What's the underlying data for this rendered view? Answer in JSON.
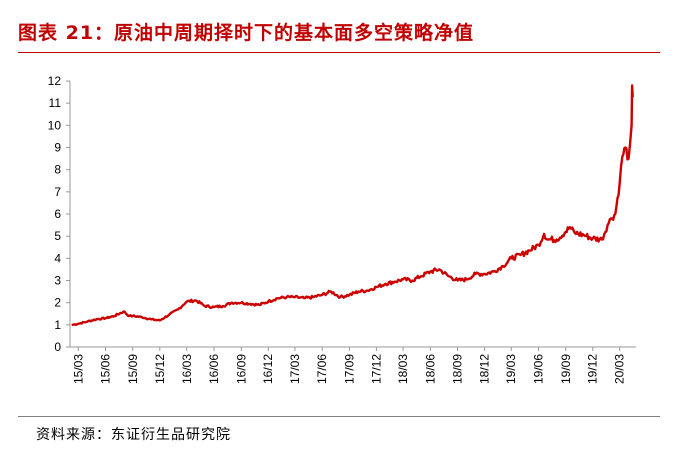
{
  "title": "图表 21：原油中周期择时下的基本面多空策略净值",
  "source": "资料来源：东证衍生品研究院",
  "colors": {
    "title": "#c00000",
    "line": "#cc0000",
    "axis": "#999999"
  },
  "chart_data": {
    "type": "line",
    "title": "",
    "xlabel": "",
    "ylabel": "",
    "ylim": [
      0,
      12
    ],
    "yticks": [
      0,
      1,
      2,
      3,
      4,
      5,
      6,
      7,
      8,
      9,
      10,
      11,
      12
    ],
    "grid": false,
    "legend": "none",
    "x_tick_labels": [
      "15/03",
      "15/06",
      "15/09",
      "15/12",
      "16/03",
      "16/06",
      "16/09",
      "16/12",
      "17/03",
      "17/06",
      "17/09",
      "17/12",
      "18/03",
      "18/06",
      "18/09",
      "18/12",
      "19/03",
      "19/06",
      "19/09",
      "19/12",
      "20/03"
    ],
    "x": [
      "2015-02-10",
      "2015-03-01",
      "2015-04-01",
      "2015-05-01",
      "2015-06-01",
      "2015-07-01",
      "2015-08-01",
      "2015-08-20",
      "2015-09-01",
      "2015-10-01",
      "2015-11-01",
      "2015-12-01",
      "2016-01-01",
      "2016-02-01",
      "2016-03-01",
      "2016-04-01",
      "2016-05-01",
      "2016-06-01",
      "2016-07-01",
      "2016-08-01",
      "2016-09-01",
      "2016-10-01",
      "2016-11-01",
      "2016-12-01",
      "2017-01-01",
      "2017-02-01",
      "2017-03-01",
      "2017-04-01",
      "2017-05-01",
      "2017-06-01",
      "2017-07-01",
      "2017-08-01",
      "2017-09-01",
      "2017-10-01",
      "2017-11-01",
      "2017-12-01",
      "2018-01-01",
      "2018-02-01",
      "2018-03-01",
      "2018-04-01",
      "2018-05-01",
      "2018-06-01",
      "2018-07-01",
      "2018-08-01",
      "2018-09-01",
      "2018-10-01",
      "2018-11-01",
      "2018-12-01",
      "2019-01-01",
      "2019-02-01",
      "2019-03-01",
      "2019-04-01",
      "2019-05-01",
      "2019-06-01",
      "2019-06-20",
      "2019-07-01",
      "2019-08-01",
      "2019-09-01",
      "2019-09-15",
      "2019-10-01",
      "2019-11-01",
      "2019-12-01",
      "2020-01-01",
      "2020-01-20",
      "2020-02-01",
      "2020-02-15",
      "2020-03-01",
      "2020-03-10",
      "2020-03-20",
      "2020-03-31",
      "2020-04-05",
      "2020-04-10",
      "2020-04-12",
      "2020-04-14"
    ],
    "series": [
      {
        "values": [
          1.0,
          1.05,
          1.15,
          1.25,
          1.3,
          1.4,
          1.6,
          1.4,
          1.4,
          1.35,
          1.25,
          1.2,
          1.45,
          1.7,
          2.05,
          2.1,
          1.85,
          1.8,
          1.85,
          2.0,
          2.0,
          1.95,
          1.9,
          2.05,
          2.2,
          2.25,
          2.25,
          2.2,
          2.25,
          2.35,
          2.5,
          2.25,
          2.35,
          2.5,
          2.55,
          2.7,
          2.85,
          2.95,
          3.05,
          3.0,
          3.2,
          3.4,
          3.5,
          3.2,
          3.0,
          3.05,
          3.3,
          3.3,
          3.4,
          3.65,
          4.0,
          4.15,
          4.35,
          4.6,
          5.1,
          4.85,
          4.85,
          5.2,
          5.4,
          5.15,
          5.05,
          4.9,
          4.85,
          5.5,
          5.8,
          6.0,
          7.4,
          8.6,
          9.0,
          8.5,
          9.2,
          10.0,
          11.8,
          11.3
        ]
      }
    ]
  }
}
